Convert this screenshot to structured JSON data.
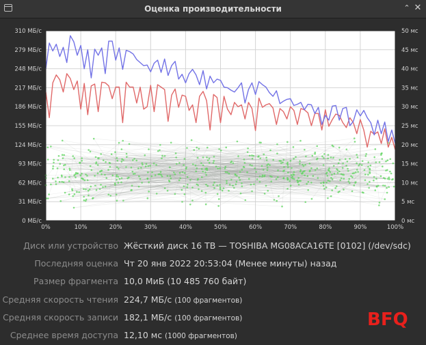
{
  "window": {
    "title": "Оценка производительности"
  },
  "chart_data": {
    "type": "line",
    "x_ticks": [
      "0%",
      "10%",
      "20%",
      "30%",
      "40%",
      "50%",
      "60%",
      "70%",
      "80%",
      "90%",
      "100%"
    ],
    "y_left_ticks": [
      "0 МБ/с",
      "31 МБ/с",
      "62 МБ/с",
      "93 МБ/с",
      "124 МБ/с",
      "155 МБ/с",
      "186 МБ/с",
      "217 МБ/с",
      "248 МБ/с",
      "279 МБ/с",
      "310 МБ/с"
    ],
    "y_right_ticks": [
      "0 мс",
      "5 мс",
      "10 мс",
      "15 мс",
      "20 мс",
      "25 мс",
      "30 мс",
      "35 мс",
      "40 мс",
      "45 мс",
      "50 мс"
    ],
    "xlim": [
      0,
      100
    ],
    "ylim_left": [
      0,
      310
    ],
    "ylim_right": [
      0,
      50
    ],
    "grid": true,
    "colors": {
      "read": "#7272e6",
      "write": "#e06868",
      "access": "#5ed65e"
    },
    "series": [
      {
        "kind": "read",
        "x": [
          0,
          1,
          2,
          3,
          4,
          5,
          6,
          7,
          8,
          9,
          10,
          11,
          12,
          13,
          14,
          15,
          16,
          17,
          18,
          19,
          20,
          21,
          22,
          23,
          24,
          25,
          26,
          27,
          28,
          29,
          30,
          31,
          32,
          33,
          34,
          35,
          36,
          37,
          38,
          39,
          40,
          41,
          42,
          43,
          44,
          45,
          46,
          47,
          48,
          49,
          50,
          51,
          52,
          53,
          54,
          55,
          56,
          57,
          58,
          59,
          60,
          61,
          62,
          63,
          64,
          65,
          66,
          67,
          68,
          69,
          70,
          71,
          72,
          73,
          74,
          75,
          76,
          77,
          78,
          79,
          80,
          81,
          82,
          83,
          84,
          85,
          86,
          87,
          88,
          89,
          90,
          91,
          92,
          93,
          94,
          95,
          96,
          97,
          98,
          99,
          100
        ],
        "values": [
          248,
          290,
          277,
          288,
          268,
          283,
          258,
          302,
          292,
          270,
          286,
          248,
          279,
          233,
          280,
          270,
          282,
          240,
          293,
          293,
          262,
          282,
          247,
          278,
          276,
          272,
          263,
          258,
          253,
          254,
          243,
          257,
          262,
          242,
          264,
          237,
          253,
          260,
          231,
          239,
          225,
          240,
          247,
          238,
          222,
          245,
          215,
          236,
          225,
          231,
          229,
          218,
          217,
          213,
          210,
          217,
          225,
          192,
          214,
          225,
          206,
          227,
          222,
          218,
          209,
          203,
          212,
          191,
          195,
          198,
          199,
          188,
          190,
          193,
          181,
          190,
          189,
          175,
          185,
          157,
          172,
          164,
          187,
          188,
          164,
          183,
          185,
          155,
          162,
          181,
          171,
          180,
          168,
          160,
          140,
          164,
          142,
          161,
          129,
          148,
          126
        ]
      },
      {
        "kind": "write",
        "x": [
          0,
          1,
          2,
          3,
          4,
          5,
          6,
          7,
          8,
          9,
          10,
          11,
          12,
          13,
          14,
          15,
          16,
          17,
          18,
          19,
          20,
          21,
          22,
          23,
          24,
          25,
          26,
          27,
          28,
          29,
          30,
          31,
          32,
          33,
          34,
          35,
          36,
          37,
          38,
          39,
          40,
          41,
          42,
          43,
          44,
          45,
          46,
          47,
          48,
          49,
          50,
          51,
          52,
          53,
          54,
          55,
          56,
          57,
          58,
          59,
          60,
          61,
          62,
          63,
          64,
          65,
          66,
          67,
          68,
          69,
          70,
          71,
          72,
          73,
          74,
          75,
          76,
          77,
          78,
          79,
          80,
          81,
          82,
          83,
          84,
          85,
          86,
          87,
          88,
          89,
          90,
          91,
          92,
          93,
          94,
          95,
          96,
          97,
          98,
          99,
          100
        ],
        "values": [
          210,
          168,
          225,
          238,
          230,
          210,
          240,
          232,
          214,
          228,
          182,
          224,
          173,
          220,
          223,
          178,
          226,
          225,
          220,
          199,
          218,
          218,
          160,
          226,
          218,
          218,
          192,
          218,
          182,
          186,
          221,
          178,
          222,
          218,
          214,
          162,
          205,
          215,
          185,
          205,
          203,
          180,
          189,
          160,
          203,
          211,
          196,
          148,
          206,
          201,
          160,
          203,
          182,
          173,
          193,
          186,
          189,
          166,
          193,
          183,
          147,
          200,
          185,
          189,
          191,
          184,
          157,
          183,
          178,
          166,
          186,
          180,
          157,
          183,
          181,
          176,
          155,
          175,
          175,
          148,
          181,
          154,
          165,
          174,
          172,
          160,
          152,
          168,
          160,
          142,
          165,
          148,
          120,
          146,
          141,
          145,
          126,
          150,
          120,
          136,
          116
        ]
      },
      {
        "kind": "access",
        "points": 1000,
        "mean_ms": 12.1,
        "range_ms": [
          2,
          23
        ]
      }
    ]
  },
  "info": {
    "rows": [
      {
        "label": "Диск или устройство",
        "value": "Жёсткий диск 16 TB — TOSHIBA MG08ACA16TE [0102] (/dev/sdc)",
        "note": ""
      },
      {
        "label": "Последняя оценка",
        "value": "Чт 20 янв 2022 20:53:04 (Менее минуты) назад",
        "note": ""
      },
      {
        "label": "Размер фрагмента",
        "value": "10,0 МиБ (10 485 760 байт)",
        "note": ""
      },
      {
        "label": "Средняя скорость чтения",
        "value": "224,7 МБ/с",
        "note": "(100 фрагментов)"
      },
      {
        "label": "Средняя скорость записи",
        "value": "182,1 МБ/с",
        "note": "(100 фрагментов)"
      },
      {
        "label": "Среднее время доступа",
        "value": "12,10 мс",
        "note": "(1000 фрагментов)"
      }
    ]
  },
  "watermark": {
    "text": "BFQ",
    "color": "#e8201c"
  }
}
